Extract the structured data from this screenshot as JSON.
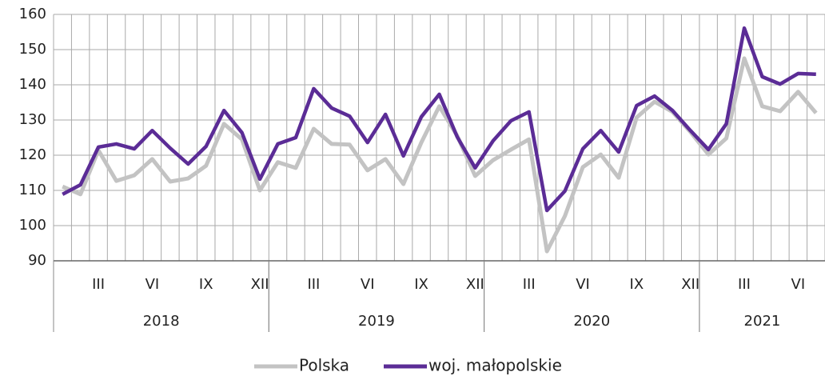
{
  "chart_data": {
    "type": "line",
    "categories": [
      null,
      null,
      "III",
      null,
      null,
      "VI",
      null,
      null,
      "IX",
      null,
      null,
      "XII",
      null,
      null,
      "III",
      null,
      null,
      "VI",
      null,
      null,
      "IX",
      null,
      null,
      "XII",
      null,
      null,
      "III",
      null,
      null,
      "VI",
      null,
      null,
      "IX",
      null,
      null,
      "XII",
      null,
      null,
      "III",
      null,
      null,
      "VI",
      null
    ],
    "years": [
      "2018",
      "2019",
      "2020",
      "2021"
    ],
    "series": [
      {
        "name": "Polska",
        "color": "#c3c3c3",
        "values": [
          111.1,
          108.9,
          121.4,
          112.7,
          114.3,
          118.9,
          112.5,
          113.4,
          117,
          128.9,
          124.5,
          110,
          118,
          116.4,
          127.5,
          123.2,
          123,
          115.7,
          118.9,
          111.8,
          123.6,
          133.9,
          125.5,
          114.1,
          118.6,
          121.6,
          124.5,
          92.7,
          102.7,
          116.6,
          120.2,
          113.6,
          130.7,
          135.2,
          132.3,
          126.6,
          120.2,
          124.8,
          147.5,
          133.9,
          132.5,
          138,
          132
        ]
      },
      {
        "name": "woj. małopolskie",
        "color": "#5b2c96",
        "values": [
          108.9,
          111.6,
          122.3,
          123.2,
          121.8,
          127,
          122,
          117.5,
          122.5,
          132.7,
          126.4,
          113.2,
          123.2,
          125,
          138.9,
          133.4,
          131.1,
          123.6,
          131.6,
          119.8,
          130.9,
          137.3,
          125.2,
          116.4,
          124.1,
          129.8,
          132.3,
          104.3,
          109.8,
          121.8,
          127,
          120.9,
          134.1,
          136.8,
          132.7,
          127,
          121.6,
          128.9,
          156.1,
          142.3,
          140.2,
          143.2,
          143
        ]
      }
    ],
    "ylim": [
      90,
      160
    ],
    "yticks": [
      90,
      100,
      110,
      120,
      130,
      140,
      150,
      160
    ],
    "grid": true,
    "legend": "bottom"
  }
}
